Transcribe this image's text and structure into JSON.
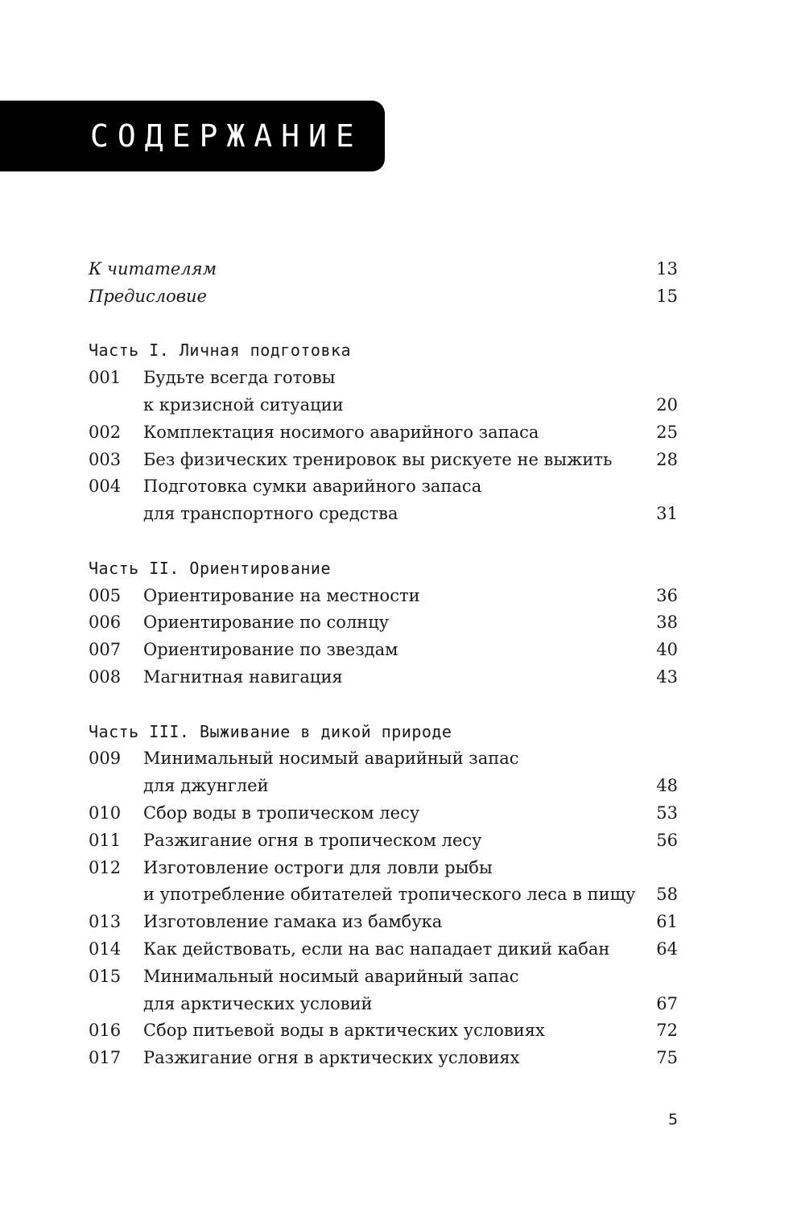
{
  "title": "СОДЕРЖАНИЕ",
  "front_matter": [
    {
      "text": "К читателям",
      "page": "13"
    },
    {
      "text": "Предисловие",
      "page": "15"
    }
  ],
  "parts": [
    {
      "title": "Часть I. Личная подготовка",
      "entries": [
        {
          "num": "001",
          "lines": [
            "Будьте всегда готовы",
            "к кризисной ситуации"
          ],
          "page": "20"
        },
        {
          "num": "002",
          "lines": [
            "Комплектация носимого аварийного запаса"
          ],
          "page": "25"
        },
        {
          "num": "003",
          "lines": [
            "Без физических тренировок вы рискуете не выжить"
          ],
          "page": "28"
        },
        {
          "num": "004",
          "lines": [
            "Подготовка сумки аварийного запаса",
            "для транспортного средства"
          ],
          "page": "31"
        }
      ]
    },
    {
      "title": "Часть II. Ориентирование",
      "entries": [
        {
          "num": "005",
          "lines": [
            "Ориентирование на местности"
          ],
          "page": "36"
        },
        {
          "num": "006",
          "lines": [
            "Ориентирование по солнцу"
          ],
          "page": "38"
        },
        {
          "num": "007",
          "lines": [
            "Ориентирование по звездам"
          ],
          "page": "40"
        },
        {
          "num": "008",
          "lines": [
            "Магнитная навигация"
          ],
          "page": "43"
        }
      ]
    },
    {
      "title": "Часть III. Выживание в дикой природе",
      "entries": [
        {
          "num": "009",
          "lines": [
            "Минимальный носимый аварийный запас",
            "для джунглей"
          ],
          "page": "48"
        },
        {
          "num": "010",
          "lines": [
            "Сбор воды в тропическом лесу"
          ],
          "page": "53"
        },
        {
          "num": "011",
          "lines": [
            "Разжигание огня в тропическом лесу"
          ],
          "page": "56"
        },
        {
          "num": "012",
          "lines": [
            "Изготовление остроги для ловли рыбы",
            "и употребление обитателей тропического леса в пищу"
          ],
          "page": "58"
        },
        {
          "num": "013",
          "lines": [
            "Изготовление гамака из бамбука"
          ],
          "page": "61"
        },
        {
          "num": "014",
          "lines": [
            "Как действовать, если на вас нападает дикий кабан"
          ],
          "page": "64"
        },
        {
          "num": "015",
          "lines": [
            "Минимальный носимый аварийный запас",
            "для арктических условий"
          ],
          "page": "67"
        },
        {
          "num": "016",
          "lines": [
            "Сбор питьевой воды в арктических условиях"
          ],
          "page": "72"
        },
        {
          "num": "017",
          "lines": [
            "Разжигание огня в арктических условиях"
          ],
          "page": "75"
        }
      ]
    }
  ],
  "page_number": "5"
}
